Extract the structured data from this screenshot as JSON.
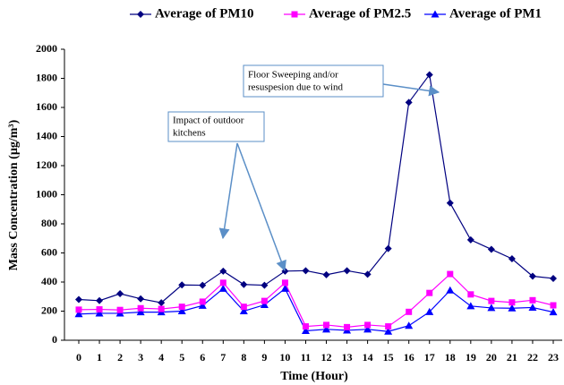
{
  "chart_data": {
    "type": "line",
    "x_label": "Time (Hour)",
    "y_label": "Mass Concentration (µg/m³)",
    "x": [
      0,
      1,
      2,
      3,
      4,
      5,
      6,
      7,
      8,
      9,
      10,
      11,
      12,
      13,
      14,
      15,
      16,
      17,
      18,
      19,
      20,
      21,
      22,
      23
    ],
    "series": [
      {
        "name": "Average of PM10",
        "color": "#000080",
        "marker": "diamond",
        "values": [
          280,
          272,
          320,
          285,
          258,
          380,
          378,
          475,
          383,
          378,
          475,
          478,
          450,
          478,
          453,
          630,
          1635,
          1825,
          943,
          690,
          625,
          560,
          440,
          425
        ]
      },
      {
        "name": "Average of PM2.5",
        "color": "#ff00ff",
        "marker": "square",
        "values": [
          210,
          212,
          208,
          220,
          215,
          230,
          265,
          395,
          230,
          270,
          395,
          95,
          105,
          90,
          105,
          95,
          195,
          325,
          455,
          315,
          270,
          260,
          275,
          240
        ]
      },
      {
        "name": "Average of PM1",
        "color": "#0000ff",
        "marker": "triangle",
        "values": [
          180,
          185,
          185,
          193,
          193,
          200,
          238,
          355,
          200,
          243,
          355,
          65,
          75,
          68,
          75,
          60,
          100,
          195,
          343,
          235,
          222,
          220,
          225,
          193
        ]
      }
    ],
    "ylim": [
      0,
      2000
    ],
    "yticks": [
      0,
      200,
      400,
      600,
      800,
      1000,
      1200,
      1400,
      1600,
      1800,
      2000
    ],
    "annotations": [
      {
        "lines": [
          "Impact of outdoor",
          "kitchens"
        ]
      },
      {
        "lines": [
          "Floor Sweeping and/or",
          "resuspesion due to wind"
        ]
      }
    ]
  }
}
